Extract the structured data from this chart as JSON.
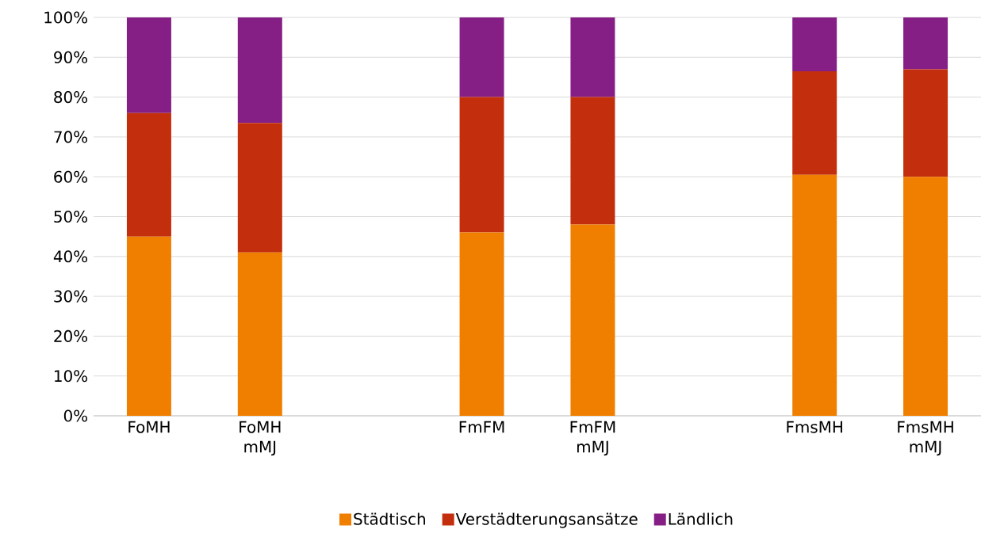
{
  "chart_data": {
    "type": "bar",
    "stacked": true,
    "categories": [
      "FoMH",
      "FoMH mMJ",
      null,
      "FmFM",
      "FmFM mMJ",
      null,
      "FmsMH",
      "FmsMH mMJ"
    ],
    "series": [
      {
        "name": "Städtisch",
        "color": "#f07f00",
        "values": [
          45,
          41,
          null,
          46,
          48,
          null,
          60.5,
          60
        ]
      },
      {
        "name": "Verstädterungsansätze",
        "color": "#c32f0c",
        "values": [
          31,
          32.5,
          null,
          34,
          32,
          null,
          26,
          27
        ]
      },
      {
        "name": "Ländlich",
        "color": "#861f85",
        "values": [
          24,
          26.5,
          null,
          20,
          20,
          null,
          13.5,
          13
        ]
      }
    ],
    "ylim": [
      0,
      100
    ],
    "yticks": [
      {
        "value": 0,
        "label": "0%"
      },
      {
        "value": 10,
        "label": "10%"
      },
      {
        "value": 20,
        "label": "20%"
      },
      {
        "value": 30,
        "label": "30%"
      },
      {
        "value": 40,
        "label": "40%"
      },
      {
        "value": 50,
        "label": "50%"
      },
      {
        "value": 60,
        "label": "60%"
      },
      {
        "value": 70,
        "label": "70%"
      },
      {
        "value": 80,
        "label": "80%"
      },
      {
        "value": 90,
        "label": "90%"
      },
      {
        "value": 100,
        "label": "100%"
      }
    ],
    "grid": "y",
    "legend": "bottom"
  }
}
